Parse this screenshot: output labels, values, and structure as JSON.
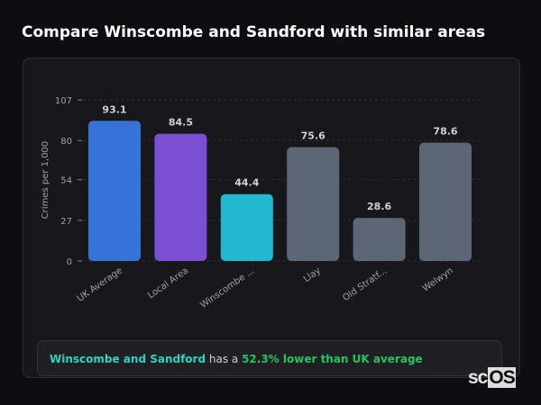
{
  "title": "Compare Winscombe and Sandford with similar areas",
  "chart_data": {
    "type": "bar",
    "title": "",
    "xlabel": "",
    "ylabel": "Crimes per 1,000",
    "ylim": [
      0,
      107
    ],
    "yticks": [
      0,
      27,
      54,
      80,
      107
    ],
    "grid": true,
    "categories": [
      "UK Average",
      "Local Area",
      "Winscombe ...",
      "Llay",
      "Old Stratf...",
      "Welwyn"
    ],
    "values": [
      93.1,
      84.5,
      44.4,
      75.6,
      28.6,
      78.6
    ],
    "value_labels": [
      "93.1",
      "84.5",
      "44.4",
      "75.6",
      "28.6",
      "78.6"
    ],
    "colors": [
      "#3573d9",
      "#7b4fd3",
      "#22b8cf",
      "#5c6677",
      "#5c6677",
      "#5c6677"
    ]
  },
  "summary": {
    "area": "Winscombe and Sandford",
    "middle": " has a ",
    "comparison": "52.3% lower than UK average"
  },
  "logo": {
    "text_a": "sc",
    "text_b": "OS"
  }
}
